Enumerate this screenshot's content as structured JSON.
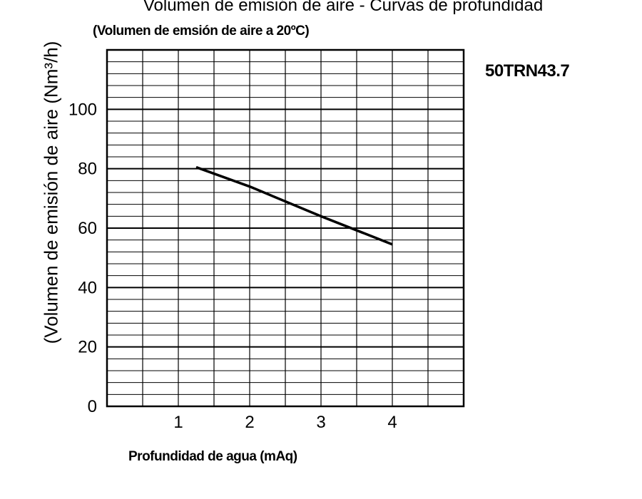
{
  "chart_data": {
    "type": "line",
    "title": "Volumen de emisión de aire - Curvas de profundidad",
    "subtitle": "(Volumen de emsión de aire a 20ºC)",
    "model": "50TRN43.7",
    "xlabel": "Profundidad de agua (mAq)",
    "ylabel": "(Volumen de emisión de aire (Nm³/h)",
    "xlim": [
      0,
      5
    ],
    "ylim": [
      0,
      120
    ],
    "x_ticks": [
      1,
      2,
      3,
      4
    ],
    "y_ticks": [
      0,
      20,
      40,
      60,
      80,
      100
    ],
    "x_minor_step": 0.5,
    "y_minor_step": 4,
    "grid": true,
    "series": [
      {
        "x": [
          1.25,
          2,
          3,
          4
        ],
        "y": [
          80.5,
          74,
          64,
          54.5
        ]
      }
    ]
  }
}
